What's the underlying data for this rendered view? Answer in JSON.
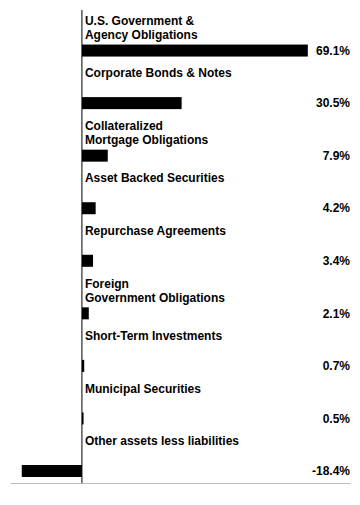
{
  "chart_data": {
    "type": "bar",
    "orientation": "horizontal",
    "categories": [
      "U.S. Government &\nAgency Obligations",
      "Corporate Bonds & Notes",
      "Collateralized\nMortgage Obligations",
      "Asset Backed Securities",
      "Repurchase Agreements",
      "Foreign\nGovernment Obligations",
      "Short-Term Investments",
      "Municipal Securities",
      "Other assets less liabilities"
    ],
    "values": [
      69.1,
      30.5,
      7.9,
      4.2,
      3.4,
      2.1,
      0.7,
      0.5,
      -18.4
    ],
    "value_labels": [
      "69.1%",
      "30.5%",
      "7.9%",
      "4.2%",
      "3.4%",
      "2.1%",
      "0.7%",
      "0.5%",
      "-18.4%"
    ],
    "data_labels": true,
    "color": "#000000",
    "xlim": [
      -22,
      82
    ],
    "tick_labels": false,
    "grid": false
  }
}
